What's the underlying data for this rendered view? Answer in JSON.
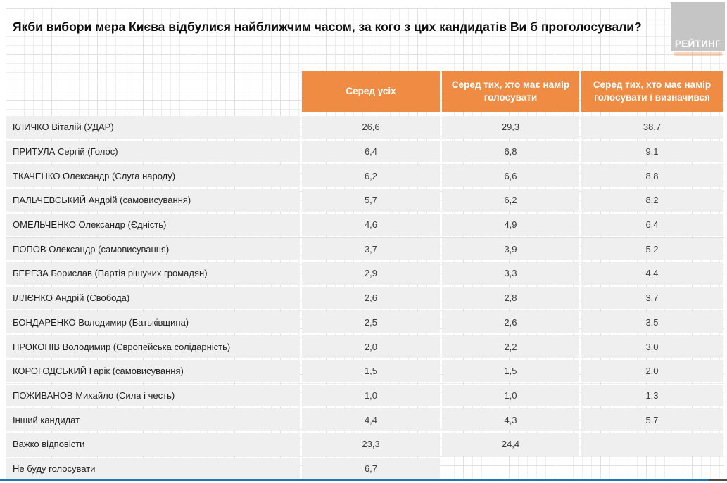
{
  "page": {
    "title": "Якби вибори мера Києва відбулися найближчим часом, за кого з цих кандидатів Ви б проголосували?",
    "logo_text": "РЕЙТИНГ"
  },
  "colors": {
    "accent_orange": "#EF8B42",
    "row_gray": "#EFEFEF",
    "footer_blue": "#1B76B9",
    "footer_dark": "#4A4A4A",
    "logo_gray": "#C5C5C5"
  },
  "chart_data": {
    "type": "table",
    "title": "Якби вибори мера Києва відбулися найближчим часом, за кого з цих кандидатів Ви б проголосували?",
    "columns": [
      "Серед усіх",
      "Серед тих, хто має намір голосувати",
      "Серед тих, хто має намір голосувати і визначився"
    ],
    "rows": [
      {
        "label": "КЛИЧКО Віталій (УДАР)",
        "values": [
          "26,6",
          "29,3",
          "38,7"
        ]
      },
      {
        "label": "ПРИТУЛА Сергій (Голос)",
        "values": [
          "6,4",
          "6,8",
          "9,1"
        ]
      },
      {
        "label": "ТКАЧЕНКО Олександр (Слуга народу)",
        "values": [
          "6,2",
          "6,6",
          "8,8"
        ]
      },
      {
        "label": "ПАЛЬЧЕВСЬКИЙ Андрій (самовисування)",
        "values": [
          "5,7",
          "6,2",
          "8,2"
        ]
      },
      {
        "label": "ОМЕЛЬЧЕНКО Олександр (Єдність)",
        "values": [
          "4,6",
          "4,9",
          "6,4"
        ]
      },
      {
        "label": "ПОПОВ Олександр (самовисування)",
        "values": [
          "3,7",
          "3,9",
          "5,2"
        ]
      },
      {
        "label": "БЕРЕЗА Борислав (Партія рішучих громадян)",
        "values": [
          "2,9",
          "3,3",
          "4,4"
        ]
      },
      {
        "label": "ІЛЛЄНКО Андрій (Свобода)",
        "values": [
          "2,6",
          "2,8",
          "3,7"
        ]
      },
      {
        "label": "БОНДАРЕНКО Володимир (Батьківщина)",
        "values": [
          "2,5",
          "2,6",
          "3,5"
        ]
      },
      {
        "label": "ПРОКОПІВ Володимир (Європейська солідарність)",
        "values": [
          "2,0",
          "2,2",
          "3,0"
        ]
      },
      {
        "label": "КОРОГОДСЬКИЙ Гарік (самовисування)",
        "values": [
          "1,5",
          "1,5",
          "2,0"
        ]
      },
      {
        "label": "ПОЖИВАНОВ Михайло (Сила і честь)",
        "values": [
          "1,0",
          "1,0",
          "1,3"
        ]
      },
      {
        "label": "Інший кандидат",
        "values": [
          "4,4",
          "4,3",
          "5,7"
        ]
      },
      {
        "label": "Важко відповісти",
        "values": [
          "23,3",
          "24,4",
          ""
        ]
      },
      {
        "label": "Не буду голосувати",
        "values": [
          "6,7",
          null,
          null
        ]
      }
    ]
  }
}
